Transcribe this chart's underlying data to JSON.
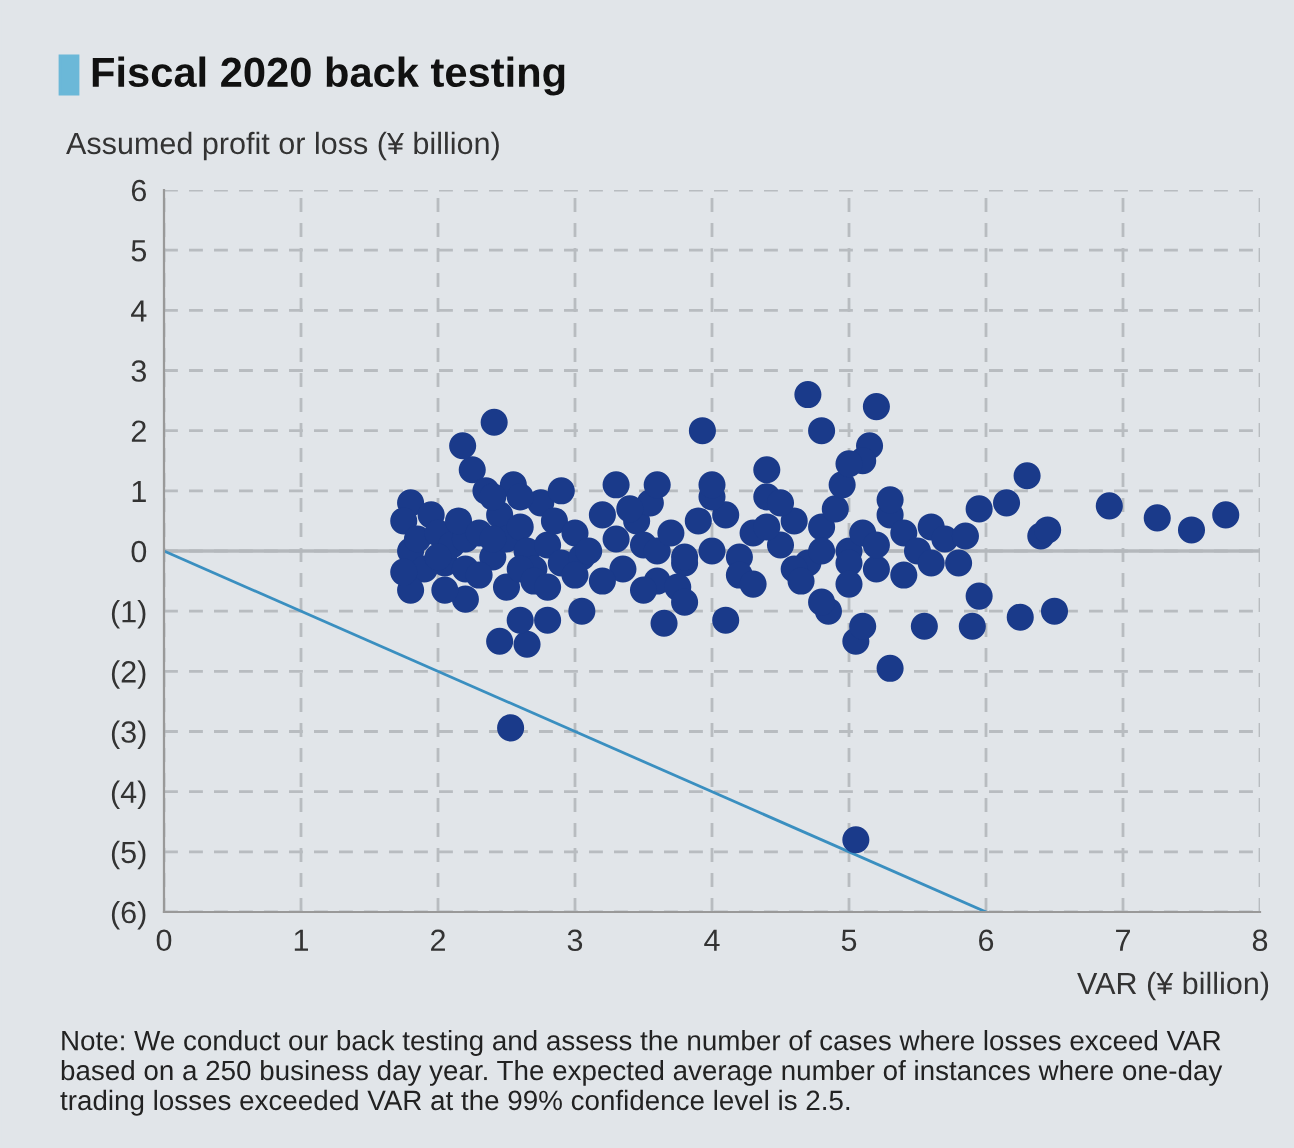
{
  "chart_data": {
    "type": "scatter",
    "title": "Fiscal 2020 back testing",
    "ylabel": "Assumed profit or loss (¥ billion)",
    "xlabel": "VAR (¥ billion)",
    "annotations": [
      "Note: We conduct our back testing and assess the number of cases where losses exceed VAR based on a 250 business day year. The expected average number of instances where one-day trading losses exceeded VAR at the 99% confidence level is 2.5."
    ],
    "xlim": [
      0,
      8
    ],
    "ylim": [
      -6,
      6
    ],
    "xticks": [
      0,
      1,
      2,
      3,
      4,
      5,
      6,
      7,
      8
    ],
    "yticks": [
      {
        "value": -6,
        "label": "(6)"
      },
      {
        "value": -5,
        "label": "(5)"
      },
      {
        "value": -4,
        "label": "(4)"
      },
      {
        "value": -3,
        "label": "(3)"
      },
      {
        "value": -2,
        "label": "(2)"
      },
      {
        "value": -1,
        "label": "(1)"
      },
      {
        "value": 0,
        "label": "0"
      },
      1,
      2,
      3,
      4,
      5,
      6
    ],
    "grid": true,
    "ref_lines": [
      {
        "axis": "y",
        "value": 0,
        "color": "#b4b8bc"
      }
    ],
    "series": [
      {
        "marker": "circle",
        "color": "#1a3a8a",
        "x": [
          1.8,
          1.75,
          1.8,
          1.85,
          1.95,
          2.0,
          2.05,
          2.1,
          2.2,
          2.2,
          2.15,
          2.25,
          2.3,
          2.35,
          2.4,
          2.45,
          2.5,
          2.55,
          2.6,
          2.65,
          2.7,
          2.75,
          2.8,
          2.85,
          2.9,
          3.0,
          3.05,
          3.1,
          3.2,
          3.3,
          3.35,
          3.45,
          3.5,
          3.55,
          3.6,
          3.7,
          3.8,
          3.9,
          4.0,
          4.1,
          4.2,
          4.3,
          4.4,
          4.5,
          4.6,
          4.7,
          4.8,
          4.9,
          5.0,
          5.1,
          5.2,
          5.3,
          5.4,
          5.5,
          5.6,
          5.7,
          5.8,
          1.9,
          2.0,
          2.3,
          2.4,
          2.5,
          2.6,
          2.7,
          2.8,
          3.0,
          3.2,
          3.4,
          3.6,
          3.8,
          4.0,
          4.2,
          4.4,
          4.6,
          4.8,
          5.0,
          5.2,
          5.4,
          5.6,
          2.4,
          2.53,
          2.41,
          2.18,
          3.93,
          4.7,
          4.8,
          5.2,
          5.15,
          5.1,
          4.95,
          5.0,
          4.4,
          4.0,
          3.6,
          6.9,
          7.25,
          7.5,
          7.75,
          6.4,
          6.45,
          6.3,
          6.15,
          6.5,
          6.25,
          5.95,
          5.9,
          5.95,
          5.85,
          5.05,
          5.05,
          5.1,
          5.3,
          4.85,
          4.8,
          4.65,
          4.1,
          3.65,
          3.5,
          2.45,
          2.65,
          2.6,
          2.8,
          3.05,
          2.2,
          1.8,
          1.75,
          5.55,
          5.0,
          4.3,
          3.75,
          3.8,
          2.05,
          2.6,
          2.9,
          3.3,
          4.5,
          5.3
        ],
        "values": [
          0.8,
          0.5,
          0.0,
          0.2,
          0.6,
          0.3,
          -0.2,
          0.1,
          0.2,
          -0.3,
          0.5,
          1.35,
          0.3,
          1.0,
          -0.1,
          0.6,
          0.2,
          1.1,
          0.4,
          0.0,
          -0.3,
          0.8,
          0.1,
          0.5,
          -0.2,
          0.3,
          -0.1,
          0.0,
          0.6,
          0.2,
          -0.3,
          0.5,
          0.1,
          0.8,
          0.0,
          0.3,
          -0.2,
          0.5,
          0.0,
          0.6,
          -0.1,
          0.3,
          0.9,
          0.1,
          0.5,
          -0.2,
          0.4,
          0.7,
          0.0,
          0.3,
          -0.3,
          0.6,
          0.3,
          0.0,
          0.4,
          0.2,
          -0.2,
          -0.3,
          -0.1,
          -0.4,
          0.9,
          -0.6,
          -0.3,
          -0.5,
          -0.6,
          -0.4,
          -0.5,
          0.7,
          -0.5,
          -0.1,
          0.9,
          -0.4,
          0.4,
          -0.3,
          0.0,
          -0.2,
          0.1,
          -0.4,
          -0.2,
          0.2,
          -2.94,
          2.14,
          1.75,
          2.0,
          2.6,
          2.0,
          2.4,
          1.75,
          1.5,
          1.1,
          1.45,
          1.35,
          1.1,
          1.1,
          0.75,
          0.55,
          0.35,
          0.6,
          0.25,
          0.35,
          1.25,
          0.8,
          -1.0,
          -1.1,
          -0.75,
          -1.25,
          0.7,
          0.25,
          -4.8,
          -1.5,
          -1.25,
          -1.95,
          -1.0,
          -0.85,
          -0.5,
          -1.15,
          -1.2,
          -0.65,
          -1.5,
          -1.55,
          -1.15,
          -1.15,
          -1.0,
          -0.8,
          -0.65,
          -0.35,
          -1.25,
          -0.55,
          -0.55,
          -0.6,
          -0.85,
          -0.65,
          0.9,
          1.0,
          1.1,
          0.8,
          0.85
        ]
      },
      {
        "type": "line",
        "color": "#3a8fc0",
        "x": [
          0,
          6
        ],
        "values": [
          0,
          -6
        ]
      }
    ]
  }
}
